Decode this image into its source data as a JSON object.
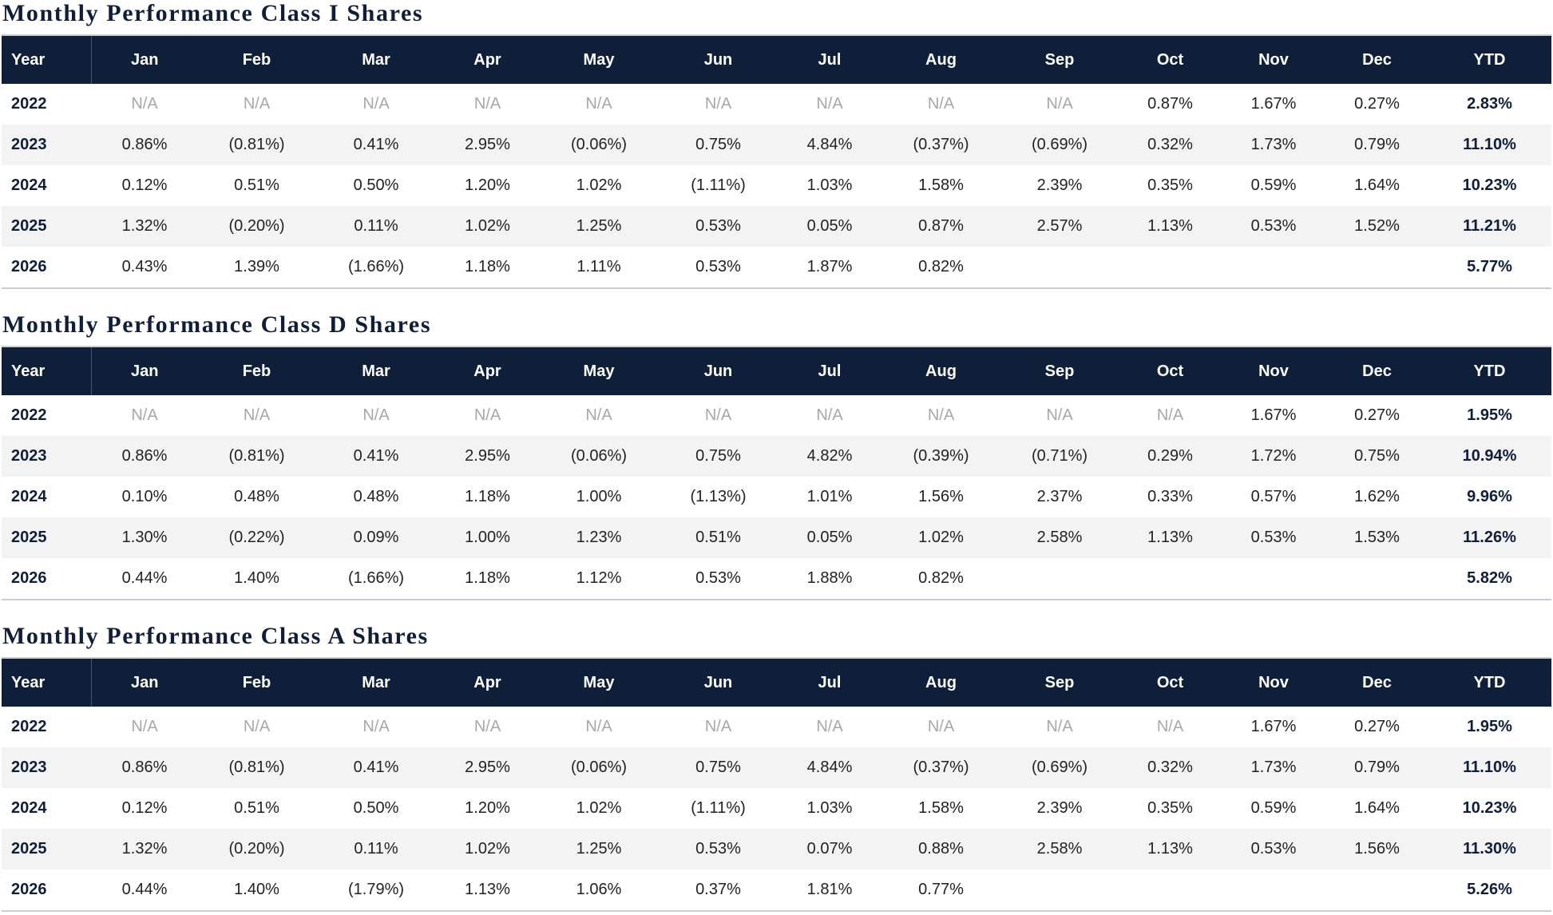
{
  "columns": [
    "Year",
    "Jan",
    "Feb",
    "Mar",
    "Apr",
    "May",
    "Jun",
    "Jul",
    "Aug",
    "Sep",
    "Oct",
    "Nov",
    "Dec",
    "YTD"
  ],
  "sections": [
    {
      "title": "Monthly Performance Class I Shares",
      "rows": [
        {
          "year": "2022",
          "months": [
            "N/A",
            "N/A",
            "N/A",
            "N/A",
            "N/A",
            "N/A",
            "N/A",
            "N/A",
            "N/A",
            "0.87%",
            "1.67%",
            "0.27%"
          ],
          "ytd": "2.83%"
        },
        {
          "year": "2023",
          "months": [
            "0.86%",
            "(0.81%)",
            "0.41%",
            "2.95%",
            "(0.06%)",
            "0.75%",
            "4.84%",
            "(0.37%)",
            "(0.69%)",
            "0.32%",
            "1.73%",
            "0.79%"
          ],
          "ytd": "11.10%"
        },
        {
          "year": "2024",
          "months": [
            "0.12%",
            "0.51%",
            "0.50%",
            "1.20%",
            "1.02%",
            "(1.11%)",
            "1.03%",
            "1.58%",
            "2.39%",
            "0.35%",
            "0.59%",
            "1.64%"
          ],
          "ytd": "10.23%"
        },
        {
          "year": "2025",
          "months": [
            "1.32%",
            "(0.20%)",
            "0.11%",
            "1.02%",
            "1.25%",
            "0.53%",
            "0.05%",
            "0.87%",
            "2.57%",
            "1.13%",
            "0.53%",
            "1.52%"
          ],
          "ytd": "11.21%"
        },
        {
          "year": "2026",
          "months": [
            "0.43%",
            "1.39%",
            "(1.66%)",
            "1.18%",
            "1.11%",
            "0.53%",
            "1.87%",
            "0.82%",
            "",
            "",
            "",
            ""
          ],
          "ytd": "5.77%"
        }
      ]
    },
    {
      "title": "Monthly Performance Class D Shares",
      "rows": [
        {
          "year": "2022",
          "months": [
            "N/A",
            "N/A",
            "N/A",
            "N/A",
            "N/A",
            "N/A",
            "N/A",
            "N/A",
            "N/A",
            "N/A",
            "1.67%",
            "0.27%"
          ],
          "ytd": "1.95%"
        },
        {
          "year": "2023",
          "months": [
            "0.86%",
            "(0.81%)",
            "0.41%",
            "2.95%",
            "(0.06%)",
            "0.75%",
            "4.82%",
            "(0.39%)",
            "(0.71%)",
            "0.29%",
            "1.72%",
            "0.75%"
          ],
          "ytd": "10.94%"
        },
        {
          "year": "2024",
          "months": [
            "0.10%",
            "0.48%",
            "0.48%",
            "1.18%",
            "1.00%",
            "(1.13%)",
            "1.01%",
            "1.56%",
            "2.37%",
            "0.33%",
            "0.57%",
            "1.62%"
          ],
          "ytd": "9.96%"
        },
        {
          "year": "2025",
          "months": [
            "1.30%",
            "(0.22%)",
            "0.09%",
            "1.00%",
            "1.23%",
            "0.51%",
            "0.05%",
            "1.02%",
            "2.58%",
            "1.13%",
            "0.53%",
            "1.53%"
          ],
          "ytd": "11.26%"
        },
        {
          "year": "2026",
          "months": [
            "0.44%",
            "1.40%",
            "(1.66%)",
            "1.18%",
            "1.12%",
            "0.53%",
            "1.88%",
            "0.82%",
            "",
            "",
            "",
            ""
          ],
          "ytd": "5.82%"
        }
      ]
    },
    {
      "title": "Monthly Performance Class A Shares",
      "rows": [
        {
          "year": "2022",
          "months": [
            "N/A",
            "N/A",
            "N/A",
            "N/A",
            "N/A",
            "N/A",
            "N/A",
            "N/A",
            "N/A",
            "N/A",
            "1.67%",
            "0.27%"
          ],
          "ytd": "1.95%"
        },
        {
          "year": "2023",
          "months": [
            "0.86%",
            "(0.81%)",
            "0.41%",
            "2.95%",
            "(0.06%)",
            "0.75%",
            "4.84%",
            "(0.37%)",
            "(0.69%)",
            "0.32%",
            "1.73%",
            "0.79%"
          ],
          "ytd": "11.10%"
        },
        {
          "year": "2024",
          "months": [
            "0.12%",
            "0.51%",
            "0.50%",
            "1.20%",
            "1.02%",
            "(1.11%)",
            "1.03%",
            "1.58%",
            "2.39%",
            "0.35%",
            "0.59%",
            "1.64%"
          ],
          "ytd": "10.23%"
        },
        {
          "year": "2025",
          "months": [
            "1.32%",
            "(0.20%)",
            "0.11%",
            "1.02%",
            "1.25%",
            "0.53%",
            "0.07%",
            "0.88%",
            "2.58%",
            "1.13%",
            "0.53%",
            "1.56%"
          ],
          "ytd": "11.30%"
        },
        {
          "year": "2026",
          "months": [
            "0.44%",
            "1.40%",
            "(1.79%)",
            "1.13%",
            "1.06%",
            "0.37%",
            "1.81%",
            "0.77%",
            "",
            "",
            "",
            ""
          ],
          "ytd": "5.26%"
        }
      ]
    }
  ]
}
